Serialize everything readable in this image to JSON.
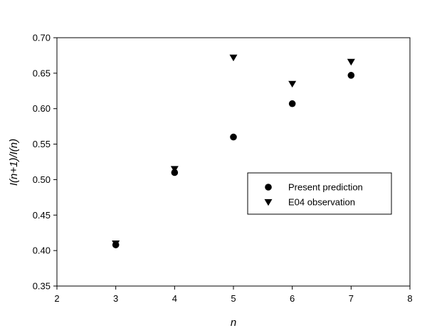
{
  "chart_data": {
    "type": "scatter",
    "title": "",
    "xlabel": "n",
    "ylabel": "I(n+1)/I(n)",
    "xlim": [
      2,
      8
    ],
    "ylim": [
      0.35,
      0.7
    ],
    "xticks": [
      "2",
      "3",
      "4",
      "5",
      "6",
      "7",
      "8"
    ],
    "yticks": [
      "0.35",
      "0.40",
      "0.45",
      "0.50",
      "0.55",
      "0.60",
      "0.65",
      "0.70"
    ],
    "grid": false,
    "legend_position": "right-middle",
    "series": [
      {
        "name": "Present prediction",
        "marker": "circle",
        "color": "#000000",
        "x": [
          3,
          4,
          5,
          6,
          7
        ],
        "y": [
          0.408,
          0.51,
          0.56,
          0.607,
          0.647
        ]
      },
      {
        "name": "E04 observation",
        "marker": "triangle-down",
        "color": "#000000",
        "x": [
          3,
          4,
          5,
          6,
          7
        ],
        "y": [
          0.41,
          0.515,
          0.672,
          0.635,
          0.666
        ]
      }
    ]
  }
}
